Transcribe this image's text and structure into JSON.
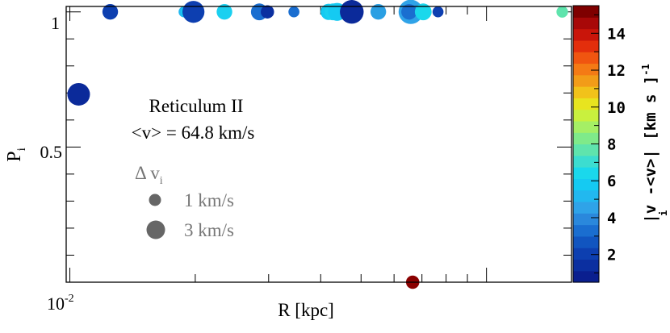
{
  "chart_data": {
    "type": "scatter",
    "title": "Reticulum II",
    "subtitle": "<v> = 64.8 km/s",
    "xlabel": "R  [kpc]",
    "ylabel": "P",
    "ylabel_sub": "i",
    "xscale": "log",
    "xlim": [
      0.0098,
      0.16
    ],
    "ylim": [
      0.0,
      1.02
    ],
    "x_tick_label": "10",
    "x_tick_label_exp": "-2",
    "y_ticks": [
      {
        "value": 0.5,
        "label": "0.5"
      },
      {
        "value": 1.0,
        "label": "1"
      }
    ],
    "size_legend": {
      "title": "Δ v",
      "title_sub": "i",
      "entries": [
        {
          "label": "1 km/s",
          "dv": 1
        },
        {
          "label": "3 km/s",
          "dv": 3
        }
      ]
    },
    "colorbar": {
      "label": "|v  -<v>|  [km s  ]",
      "label_sub": "i",
      "label_sup": "-1",
      "range": [
        0.5,
        15.5
      ],
      "ticks": [
        "2",
        "4",
        "6",
        "8",
        "10",
        "12",
        "14"
      ],
      "colors": [
        "#0a1f8f",
        "#0b2fa0",
        "#0d3fb0",
        "#1155c0",
        "#1a6ed0",
        "#2a88dc",
        "#2fa3e8",
        "#22b8ef",
        "#15caf2",
        "#1ad8ec",
        "#3cddd0",
        "#5fe4ad",
        "#7fea8a",
        "#a5ef65",
        "#c9f03e",
        "#e8e41f",
        "#f1c21a",
        "#f29c18",
        "#f47a15",
        "#f05510",
        "#e32e0c",
        "#c9150a",
        "#a80808",
        "#7f0000"
      ]
    },
    "points": [
      {
        "r": 0.0105,
        "p": 0.695,
        "dv": 3.0,
        "color": "#0b2a9a"
      },
      {
        "r": 0.0125,
        "p": 1.0,
        "dv": 1.8,
        "color": "#0d3fb0"
      },
      {
        "r": 0.0188,
        "p": 1.0,
        "dv": 1.0,
        "color": "#20b8f0"
      },
      {
        "r": 0.0192,
        "p": 1.0,
        "dv": 1.5,
        "color": "#15caf2"
      },
      {
        "r": 0.0198,
        "p": 1.0,
        "dv": 2.9,
        "color": "#0d3fb0"
      },
      {
        "r": 0.0235,
        "p": 1.0,
        "dv": 1.8,
        "color": "#1ad0f0"
      },
      {
        "r": 0.0285,
        "p": 1.0,
        "dv": 2.0,
        "color": "#1a6ed0"
      },
      {
        "r": 0.0298,
        "p": 1.0,
        "dv": 1.4,
        "color": "#0b2fa0"
      },
      {
        "r": 0.0345,
        "p": 1.0,
        "dv": 1.0,
        "color": "#1a6ed0"
      },
      {
        "r": 0.0418,
        "p": 1.0,
        "dv": 1.9,
        "color": "#15caf2"
      },
      {
        "r": 0.0428,
        "p": 1.0,
        "dv": 2.0,
        "color": "#1ad0f0"
      },
      {
        "r": 0.0438,
        "p": 1.0,
        "dv": 2.2,
        "color": "#15caf2"
      },
      {
        "r": 0.0475,
        "p": 1.0,
        "dv": 3.2,
        "color": "#0b2a9a"
      },
      {
        "r": 0.055,
        "p": 1.0,
        "dv": 1.8,
        "color": "#2a9fe3"
      },
      {
        "r": 0.0658,
        "p": 1.0,
        "dv": 3.3,
        "color": "#2fa3e8"
      },
      {
        "r": 0.0652,
        "p": 1.0,
        "dv": 1.8,
        "color": "#1a6ed0"
      },
      {
        "r": 0.0705,
        "p": 1.0,
        "dv": 2.0,
        "color": "#1ad8ec"
      },
      {
        "r": 0.0765,
        "p": 1.0,
        "dv": 1.0,
        "color": "#0d3fb0"
      },
      {
        "r": 0.0665,
        "p": 0.0,
        "dv": 1.4,
        "color": "#8a0000"
      },
      {
        "r": 0.152,
        "p": 1.0,
        "dv": 1.1,
        "color": "#5fe4ad"
      }
    ]
  }
}
